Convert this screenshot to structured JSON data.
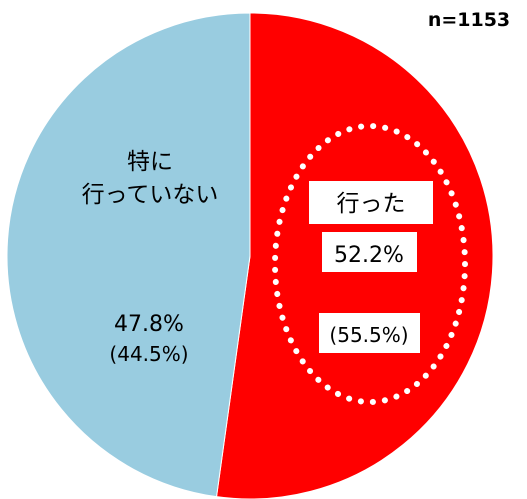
{
  "chart_data": {
    "type": "pie",
    "sample_size_label": "n=1153",
    "slices": [
      {
        "label": "行った",
        "value": 52.2,
        "value_label": "52.2%",
        "secondary_label": "(55.5%)",
        "color": "#ff0000"
      },
      {
        "label_lines": [
          "特に",
          "行っていない"
        ],
        "value": 47.8,
        "value_label": "47.8%",
        "secondary_label": "(44.5%)",
        "color": "#99cce0"
      }
    ],
    "start_angle_deg": 0,
    "direction": "clockwise"
  }
}
